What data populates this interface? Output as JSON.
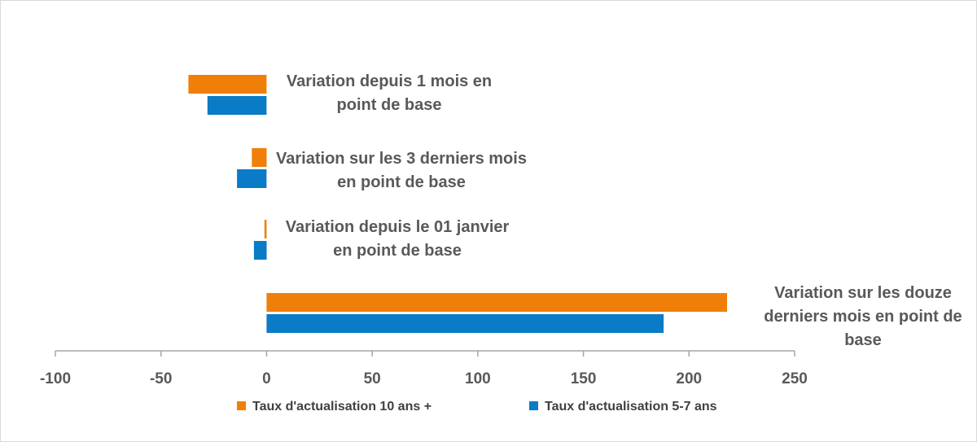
{
  "chart_data": {
    "type": "bar",
    "orientation": "horizontal",
    "categories": [
      [
        "Variation depuis 1 mois en",
        "point de base"
      ],
      [
        "Variation sur les 3 derniers mois",
        "en point de base"
      ],
      [
        "Variation depuis le 01 janvier",
        "en point de base"
      ],
      [
        "Variation sur les douze",
        "derniers mois en point de",
        "base"
      ]
    ],
    "series": [
      {
        "name": "Taux d'actualisation 10 ans +",
        "color": "#F07F09",
        "values": [
          -37,
          -7,
          -1,
          218
        ]
      },
      {
        "name": "Taux d'actualisation 5-7 ans",
        "color": "#0A7BC6",
        "values": [
          -28,
          -14,
          -6,
          188
        ]
      }
    ],
    "xlim": [
      -100,
      250
    ],
    "xticks": [
      -100,
      -50,
      0,
      50,
      100,
      150,
      200,
      250
    ],
    "grid": false,
    "legend": "bottom"
  }
}
